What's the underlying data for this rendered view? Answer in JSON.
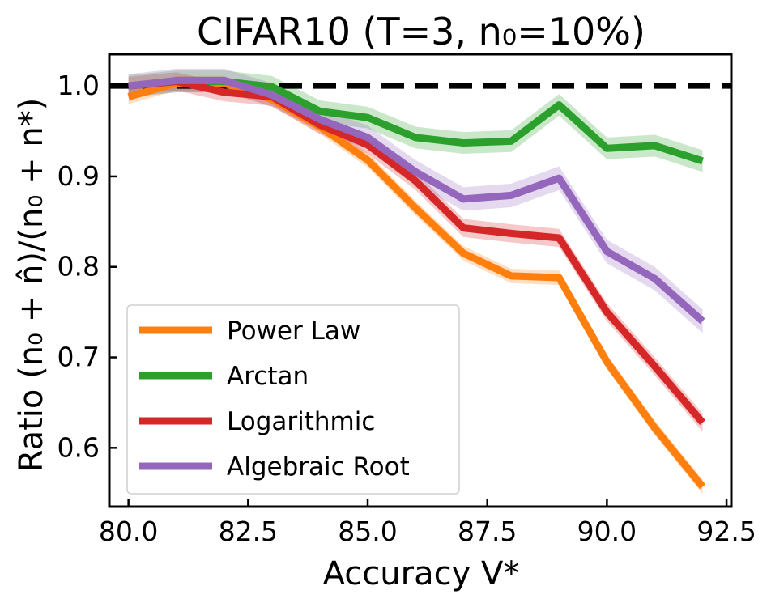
{
  "chart_data": {
    "type": "line",
    "title": "CIFAR10 (T=3, n₀=10%)",
    "xlabel": "Accuracy V*",
    "ylabel": "Ratio (n₀ + n̂)/(n₀ + n*)",
    "xlim": [
      79.6,
      92.6
    ],
    "ylim": [
      0.535,
      1.035
    ],
    "xticks": [
      80.0,
      82.5,
      85.0,
      87.5,
      90.0,
      92.5
    ],
    "xtick_labels": [
      "80.0",
      "82.5",
      "85.0",
      "87.5",
      "90.0",
      "92.5"
    ],
    "yticks": [
      0.6,
      0.7,
      0.8,
      0.9,
      1.0
    ],
    "ytick_labels": [
      "0.6",
      "0.7",
      "0.8",
      "0.9",
      "1.0"
    ],
    "reference_line": {
      "y": 1.0,
      "style": "dashed",
      "color": "#000000"
    },
    "x": [
      80,
      81,
      82,
      83,
      84,
      85,
      86,
      87,
      88,
      89,
      90,
      91,
      92
    ],
    "series": [
      {
        "name": "Power Law",
        "color": "#ff7f0e",
        "values": [
          0.988,
          1.003,
          1.003,
          0.985,
          0.955,
          0.918,
          0.865,
          0.815,
          0.79,
          0.788,
          0.695,
          0.622,
          0.557
        ],
        "band": 0.008
      },
      {
        "name": "Arctan",
        "color": "#2ca02c",
        "values": [
          1.0,
          1.005,
          1.005,
          0.999,
          0.972,
          0.965,
          0.943,
          0.937,
          0.939,
          0.979,
          0.931,
          0.934,
          0.917
        ],
        "band": 0.012
      },
      {
        "name": "Logarithmic",
        "color": "#d62728",
        "values": [
          1.0,
          1.005,
          0.993,
          0.988,
          0.957,
          0.935,
          0.895,
          0.843,
          0.837,
          0.832,
          0.75,
          0.69,
          0.628
        ],
        "band": 0.01
      },
      {
        "name": "Algebraic Root",
        "color": "#9467bd",
        "values": [
          1.0,
          1.006,
          1.006,
          0.99,
          0.963,
          0.943,
          0.905,
          0.875,
          0.879,
          0.898,
          0.817,
          0.787,
          0.74
        ],
        "band": 0.013
      }
    ],
    "legend_position": "lower-left"
  }
}
